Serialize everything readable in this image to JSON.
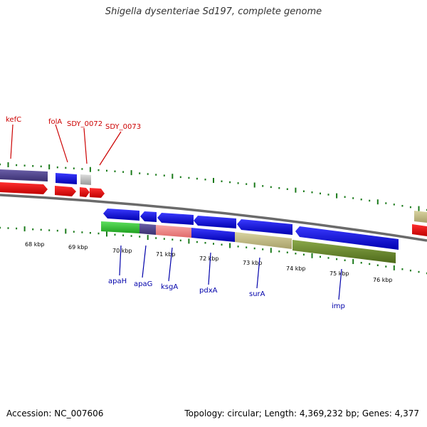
{
  "title": "Shigella dysenteriae Sd197, complete genome",
  "footer": {
    "accession": "Accession: NC_007606",
    "summary": "Topology: circular; Length: 4,369,232 bp; Genes: 4,377"
  },
  "colors": {
    "upper_label": "#cc0000",
    "lower_label": "#0000aa",
    "tick": "#1a7a1a",
    "backbone": "#808080"
  },
  "ruler": {
    "unit": "kbp",
    "labels": [
      "68 kbp",
      "69 kbp",
      "70 kbp",
      "71 kbp",
      "72 kbp",
      "73 kbp",
      "74 kbp",
      "75 kbp",
      "76 kbp"
    ]
  },
  "gene_labels_top": [
    "kefC",
    "folA",
    "SDY_0072",
    "SDY_0073"
  ],
  "gene_labels_bottom": [
    "apaH",
    "apaG",
    "ksgA",
    "pdxA",
    "surA",
    "imp"
  ]
}
